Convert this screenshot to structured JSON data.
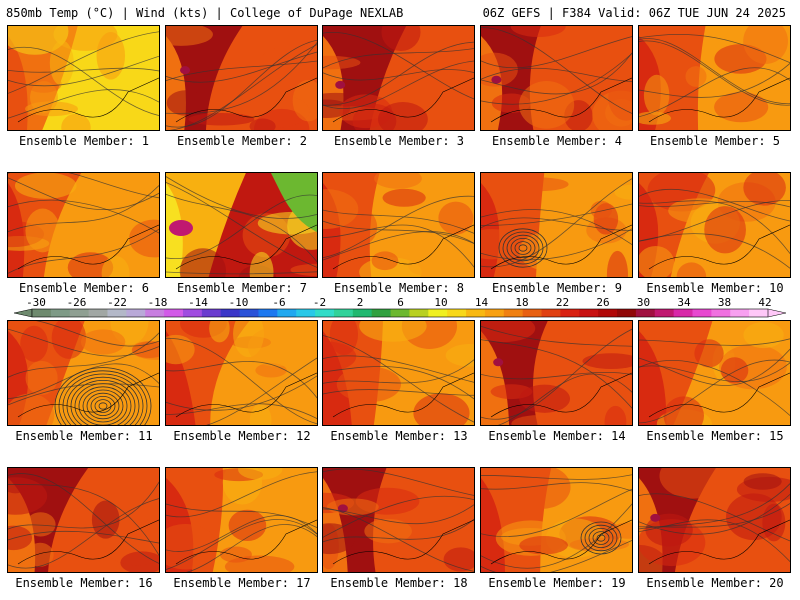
{
  "header": {
    "left": "850mb Temp (°C) | Wind (kts) | College of DuPage NEXLAB",
    "right": "06Z GEFS | F384 Valid: 06Z TUE JUN 24 2025"
  },
  "panels": [
    {
      "label": "Ensemble Member: 1",
      "palette": "cool"
    },
    {
      "label": "Ensemble Member: 2",
      "palette": "hot"
    },
    {
      "label": "Ensemble Member: 3",
      "palette": "hot"
    },
    {
      "label": "Ensemble Member: 4",
      "palette": "hot"
    },
    {
      "label": "Ensemble Member: 5",
      "palette": "warm"
    },
    {
      "label": "Ensemble Member: 6",
      "palette": "warm"
    },
    {
      "label": "Ensemble Member: 7",
      "palette": "split"
    },
    {
      "label": "Ensemble Member: 8",
      "palette": "warm"
    },
    {
      "label": "Ensemble Member: 9",
      "palette": "warm"
    },
    {
      "label": "Ensemble Member: 10",
      "palette": "warm"
    },
    {
      "label": "Ensemble Member: 11",
      "palette": "warm"
    },
    {
      "label": "Ensemble Member: 12",
      "palette": "warm"
    },
    {
      "label": "Ensemble Member: 13",
      "palette": "warm"
    },
    {
      "label": "Ensemble Member: 14",
      "palette": "hot"
    },
    {
      "label": "Ensemble Member: 15",
      "palette": "warm"
    },
    {
      "label": "Ensemble Member: 16",
      "palette": "hot"
    },
    {
      "label": "Ensemble Member: 17",
      "palette": "warm"
    },
    {
      "label": "Ensemble Member: 18",
      "palette": "hot"
    },
    {
      "label": "Ensemble Member: 19",
      "palette": "warm"
    },
    {
      "label": "Ensemble Member: 20",
      "palette": "hot"
    }
  ],
  "colorbar": {
    "ticks": [
      "-30",
      "-26",
      "-22",
      "-18",
      "-14",
      "-10",
      "-6",
      "-2",
      "2",
      "6",
      "10",
      "14",
      "18",
      "22",
      "26",
      "30",
      "34",
      "38",
      "42"
    ],
    "colors": [
      "#6e8a6e",
      "#7e9a86",
      "#8f9f92",
      "#a1a7a4",
      "#b3b8c8",
      "#b9a9d8",
      "#c87ee0",
      "#d25ae8",
      "#a04ce0",
      "#6a3ccf",
      "#3b36c8",
      "#2a52d8",
      "#1c78f0",
      "#20a8f0",
      "#28c8e8",
      "#30dcc8",
      "#30d29a",
      "#20b870",
      "#30a040",
      "#6cb830",
      "#b8d020",
      "#f0f020",
      "#f8d818",
      "#f8b810",
      "#f8a010",
      "#f08010",
      "#e86010",
      "#e04010",
      "#d82010",
      "#c81010",
      "#b00808",
      "#900808",
      "#a01040",
      "#c01870",
      "#d828a8",
      "#e848d0",
      "#f070e0",
      "#f8a0f0",
      "#ffc8f8"
    ]
  }
}
